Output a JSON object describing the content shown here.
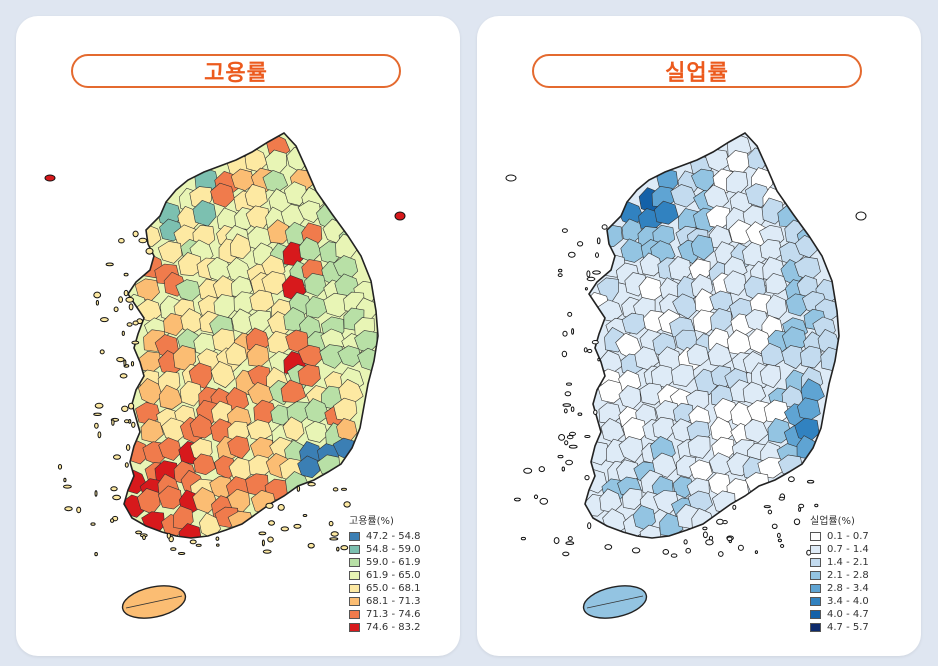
{
  "panels": [
    {
      "title": "고용률",
      "legend_title": "고용률(%)",
      "classes": [
        {
          "label": "47.2 - 54.8",
          "color": "#3b7fb4"
        },
        {
          "label": "54.8 - 59.0",
          "color": "#7cc0b0"
        },
        {
          "label": "59.0 - 61.9",
          "color": "#b8e0a6"
        },
        {
          "label": "61.9 - 65.0",
          "color": "#e8f5b5"
        },
        {
          "label": "65.0 - 68.1",
          "color": "#fde9a2"
        },
        {
          "label": "68.1 - 71.3",
          "color": "#fbbd73"
        },
        {
          "label": "71.3 - 74.6",
          "color": "#f07b4c"
        },
        {
          "label": "74.6 - 83.2",
          "color": "#d7191c"
        }
      ]
    },
    {
      "title": "실업률",
      "legend_title": "실업률(%)",
      "classes": [
        {
          "label": "0.1 - 0.7",
          "color": "#ffffff"
        },
        {
          "label": "0.7 - 1.4",
          "color": "#deebf7"
        },
        {
          "label": "1.4 - 2.1",
          "color": "#c3dbef"
        },
        {
          "label": "2.1 - 2.8",
          "color": "#93c4e2"
        },
        {
          "label": "2.8 - 3.4",
          "color": "#5fa4d3"
        },
        {
          "label": "3.4 - 4.0",
          "color": "#3182c0"
        },
        {
          "label": "4.0 - 4.7",
          "color": "#1461a8"
        },
        {
          "label": "4.7 - 5.7",
          "color": "#0d2a6b"
        }
      ]
    }
  ]
}
